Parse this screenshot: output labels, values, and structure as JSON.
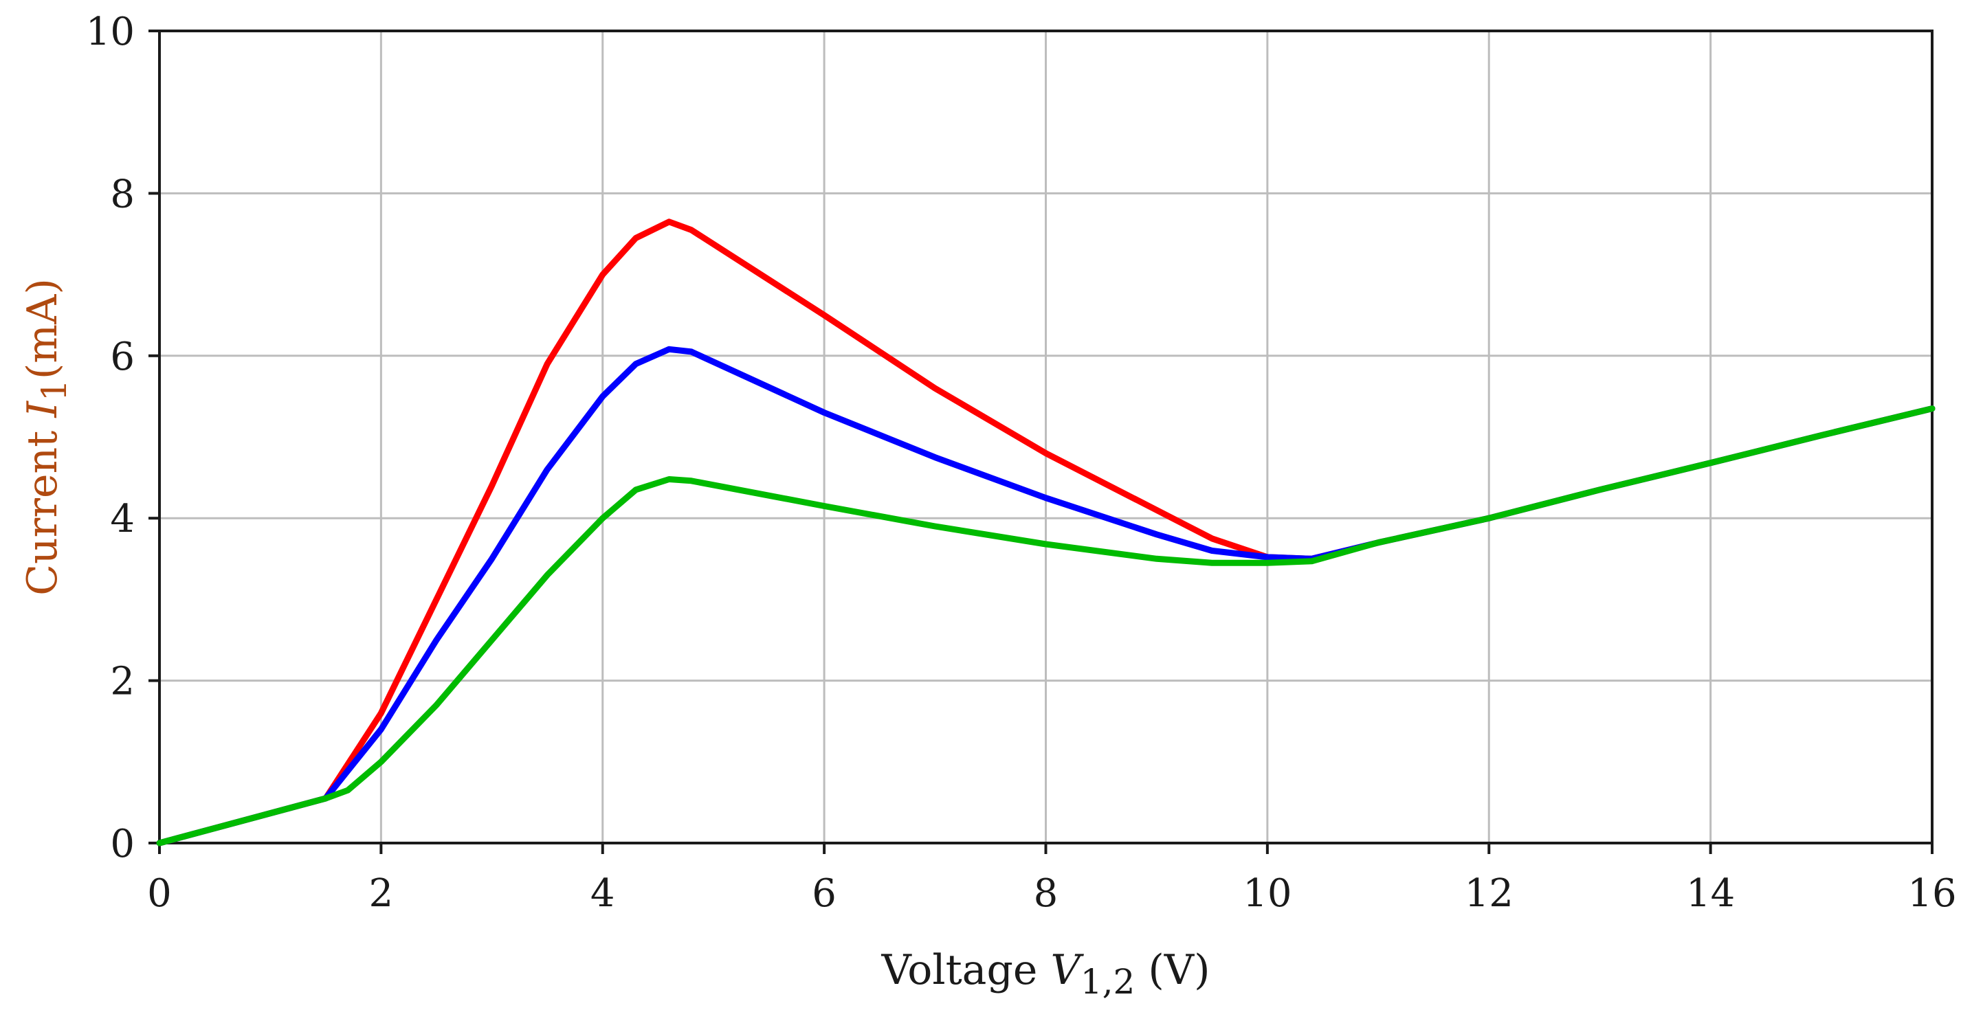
{
  "chart_data": {
    "type": "line",
    "title": "",
    "xlabel": {
      "prefix": "Voltage ",
      "symbol": "V",
      "subscript": "1,2",
      "suffix": " (V)"
    },
    "ylabel": {
      "prefix": "Current ",
      "symbol": "I",
      "subscript": "1",
      "suffix": "(mA)"
    },
    "xlim": [
      0,
      16
    ],
    "ylim": [
      0,
      10
    ],
    "xticks": [
      "0",
      "2",
      "4",
      "6",
      "8",
      "10",
      "12",
      "14",
      "16"
    ],
    "yticks": [
      "0",
      "2",
      "4",
      "6",
      "8",
      "10"
    ],
    "grid": true,
    "colors": {
      "ylabel": "#b04a10",
      "xlabel": "#1a1a1a",
      "grid": "#bdbdbd",
      "axis": "#1a1a1a"
    },
    "series": [
      {
        "name": "red",
        "color": "#ff0000",
        "points": [
          [
            0,
            0
          ],
          [
            1.5,
            0.55
          ],
          [
            2.0,
            1.6
          ],
          [
            2.5,
            3.0
          ],
          [
            3.0,
            4.4
          ],
          [
            3.5,
            5.9
          ],
          [
            4.0,
            7.0
          ],
          [
            4.3,
            7.45
          ],
          [
            4.6,
            7.65
          ],
          [
            4.8,
            7.55
          ],
          [
            6.0,
            6.5
          ],
          [
            7.0,
            5.6
          ],
          [
            8.0,
            4.8
          ],
          [
            9.0,
            4.1
          ],
          [
            9.5,
            3.75
          ],
          [
            10.0,
            3.52
          ],
          [
            10.4,
            3.5
          ],
          [
            11.0,
            3.7
          ],
          [
            12.0,
            4.0
          ],
          [
            13.0,
            4.35
          ],
          [
            14.0,
            4.68
          ],
          [
            15.0,
            5.02
          ],
          [
            16.0,
            5.35
          ]
        ]
      },
      {
        "name": "blue",
        "color": "#0000ff",
        "points": [
          [
            0,
            0
          ],
          [
            1.5,
            0.55
          ],
          [
            2.0,
            1.4
          ],
          [
            2.5,
            2.5
          ],
          [
            3.0,
            3.5
          ],
          [
            3.5,
            4.6
          ],
          [
            4.0,
            5.5
          ],
          [
            4.3,
            5.9
          ],
          [
            4.6,
            6.08
          ],
          [
            4.8,
            6.05
          ],
          [
            6.0,
            5.3
          ],
          [
            7.0,
            4.75
          ],
          [
            8.0,
            4.25
          ],
          [
            9.0,
            3.8
          ],
          [
            9.5,
            3.6
          ],
          [
            10.0,
            3.52
          ],
          [
            10.4,
            3.5
          ],
          [
            11.0,
            3.7
          ],
          [
            12.0,
            4.0
          ],
          [
            13.0,
            4.35
          ],
          [
            14.0,
            4.68
          ],
          [
            15.0,
            5.02
          ],
          [
            16.0,
            5.35
          ]
        ]
      },
      {
        "name": "green",
        "color": "#00bb00",
        "points": [
          [
            0,
            0
          ],
          [
            1.5,
            0.55
          ],
          [
            1.7,
            0.65
          ],
          [
            2.0,
            1.0
          ],
          [
            2.5,
            1.7
          ],
          [
            3.0,
            2.5
          ],
          [
            3.5,
            3.3
          ],
          [
            4.0,
            4.0
          ],
          [
            4.3,
            4.35
          ],
          [
            4.6,
            4.48
          ],
          [
            4.8,
            4.46
          ],
          [
            6.0,
            4.15
          ],
          [
            7.0,
            3.9
          ],
          [
            8.0,
            3.68
          ],
          [
            9.0,
            3.5
          ],
          [
            9.5,
            3.45
          ],
          [
            10.0,
            3.45
          ],
          [
            10.4,
            3.47
          ],
          [
            11.0,
            3.7
          ],
          [
            12.0,
            4.0
          ],
          [
            13.0,
            4.35
          ],
          [
            14.0,
            4.68
          ],
          [
            15.0,
            5.02
          ],
          [
            16.0,
            5.35
          ]
        ]
      }
    ]
  }
}
